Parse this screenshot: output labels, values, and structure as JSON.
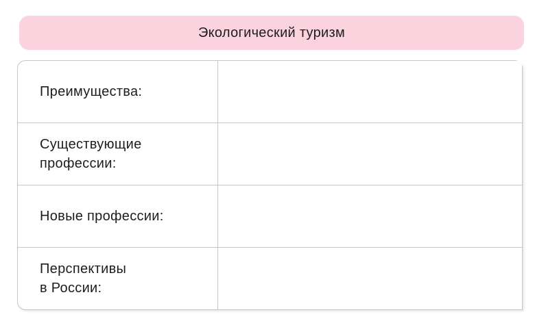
{
  "banner": {
    "title": "Экологический туризм"
  },
  "table": {
    "rows": [
      {
        "label": "Преимущества:",
        "value": ""
      },
      {
        "label": "Существующие\nпрофессии:",
        "value": ""
      },
      {
        "label": "Новые профессии:",
        "value": ""
      },
      {
        "label": "Перспективы\nв России:",
        "value": ""
      }
    ]
  },
  "colors": {
    "banner_background": "#fbd3de",
    "table_border": "#c6c6c6",
    "text": "#1d1d1f",
    "page_background": "#ffffff"
  }
}
